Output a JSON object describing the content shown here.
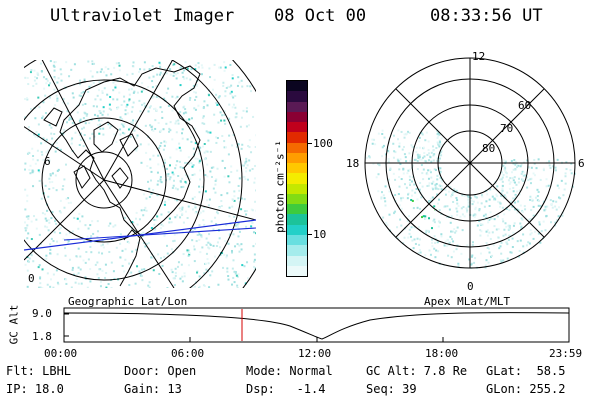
{
  "header": {
    "title": "Ultraviolet Imager",
    "date": "08 Oct 00",
    "time": "08:33:56 UT"
  },
  "colorbar": {
    "unit_label": "photon cm⁻²s⁻¹",
    "ticks": [
      "100",
      "10"
    ],
    "colors": [
      "#0b0520",
      "#2a0a3e",
      "#5a1a55",
      "#8a0033",
      "#c0001c",
      "#e22a00",
      "#f56a00",
      "#ff9d00",
      "#ffc800",
      "#f4ec00",
      "#c4e800",
      "#82dc14",
      "#3ecb3e",
      "#1cc39a",
      "#23d0c8",
      "#68dfe0",
      "#a4ecec",
      "#d4f5f5",
      "#ecfafa"
    ]
  },
  "left_map": {
    "caption": "Geographic Lat/Lon",
    "labels": [
      "6",
      "0"
    ]
  },
  "right_map": {
    "caption": "Apex MLat/MLT",
    "hour_labels": {
      "top": "12",
      "left": "18",
      "right": "6",
      "bottom": "0"
    },
    "lat_labels": [
      "60",
      "70",
      "80"
    ]
  },
  "alt_plot": {
    "ylabel": "GC Alt",
    "yticks": [
      "9.0",
      "1.8"
    ],
    "xticks": [
      "00:00",
      "06:00",
      "12:00",
      "18:00",
      "23:59"
    ]
  },
  "info": {
    "flt": "Flt: LBHL",
    "door": "Door: Open",
    "mode": "Mode: Normal",
    "gc_alt": "GC Alt: 7.8 Re",
    "glat": "GLat:  58.5",
    "ip": "IP: 18.0",
    "gain": "Gain: 13",
    "dsp": "Dsp:   -1.4",
    "seq": "Seq: 39",
    "glon": "GLon: 255.2"
  }
}
